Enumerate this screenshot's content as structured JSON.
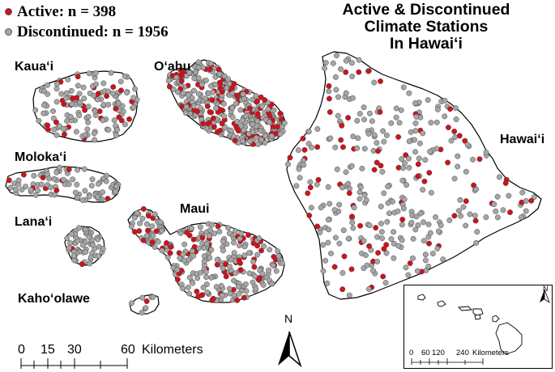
{
  "legend": {
    "active": "Active: n = 398",
    "discontinued": "Discontinued: n = 1956",
    "active_color": "#d0121b",
    "discontinued_color": "#a6a6a6"
  },
  "title": {
    "line1": "Active & Discontinued",
    "line2": "Climate Stations",
    "line3": "In Hawai‘i"
  },
  "islands": {
    "kauai": "Kaua‘i",
    "oahu": "O‘ahu",
    "molokai": "Moloka‘i",
    "lanai": "Lana‘i",
    "maui": "Maui",
    "kahoolawe": "Kaho‘olawe",
    "hawaii": "Hawai‘i"
  },
  "north_arrow": "N",
  "scale_bar": {
    "ticks": [
      "0",
      "15",
      "30",
      "60"
    ],
    "unit": "Kilometers"
  },
  "inset": {
    "north_arrow": "N",
    "scale_ticks": [
      "0",
      "60",
      "120",
      "240"
    ],
    "scale_unit": "Kilometers"
  }
}
